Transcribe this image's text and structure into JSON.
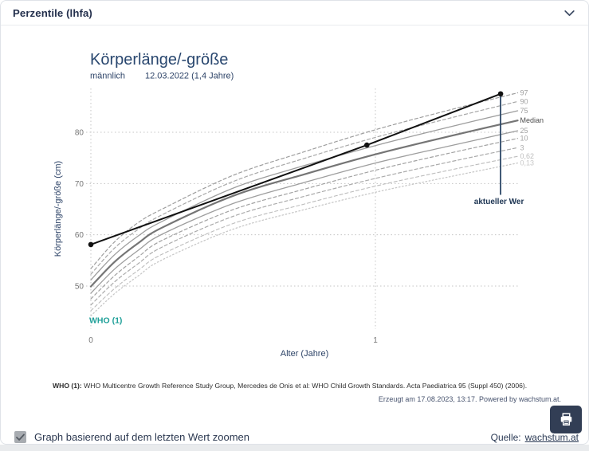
{
  "panel": {
    "title": "Perzentile (lhfa)"
  },
  "chart": {
    "title": "Körperlänge/-größe",
    "subtitle_sex": "männlich",
    "subtitle_date": "12.03.2022 (1,4 Jahre)",
    "y_axis_label": "Körperlänge/-größe (cm)",
    "x_axis_label": "Alter (Jahre)",
    "reference_label": "WHO (1)",
    "annotation_label": "aktueller Wer"
  },
  "chart_data": {
    "type": "line",
    "title": "Körperlänge/-größe",
    "subtitle": "männlich — 12.03.2022 (1,4 Jahre)",
    "xlabel": "Alter (Jahre)",
    "ylabel": "Körperlänge/-größe (cm)",
    "xlim": [
      0,
      1.5
    ],
    "ylim": [
      43.5,
      89
    ],
    "x_ticks": [
      0,
      1
    ],
    "y_ticks": [
      50,
      60,
      70,
      80
    ],
    "grid": "dotted",
    "legend_position": "right-edge-labels",
    "x": [
      0,
      0.083,
      0.167,
      0.25,
      0.5,
      0.75,
      1,
      1.25,
      1.5
    ],
    "series": [
      {
        "name": "97",
        "style": "dashed",
        "color": "#9e9e9e",
        "label_color": "#9e9e9e",
        "width": 1.2,
        "values": [
          53.4,
          58.6,
          62.4,
          65.0,
          71.6,
          76.2,
          80.5,
          84.2,
          87.7
        ]
      },
      {
        "name": "90",
        "style": "dashed",
        "color": "#a8a8a8",
        "label_color": "#a3a3a3",
        "width": 1.2,
        "values": [
          52.3,
          57.4,
          61.1,
          63.9,
          70.4,
          74.9,
          79.0,
          82.6,
          86.0
        ]
      },
      {
        "name": "75",
        "style": "solid",
        "color": "#9e9e9e",
        "label_color": "#9e9e9e",
        "width": 1.3,
        "values": [
          51.2,
          56.1,
          59.8,
          62.6,
          69.1,
          73.5,
          77.4,
          80.9,
          84.2
        ]
      },
      {
        "name": "Median",
        "style": "solid",
        "color": "#757575",
        "label_color": "#4d4d4d",
        "width": 2.2,
        "values": [
          49.9,
          54.7,
          58.4,
          61.4,
          67.6,
          71.8,
          75.7,
          79.1,
          82.3
        ]
      },
      {
        "name": "25",
        "style": "solid",
        "color": "#9e9e9e",
        "label_color": "#9e9e9e",
        "width": 1.3,
        "values": [
          48.6,
          53.3,
          57.0,
          60.1,
          66.1,
          70.2,
          74.0,
          77.2,
          80.3
        ]
      },
      {
        "name": "10",
        "style": "dashed",
        "color": "#a2a2a2",
        "label_color": "#a3a3a3",
        "width": 1.2,
        "values": [
          47.5,
          52.0,
          55.7,
          58.9,
          64.9,
          68.9,
          72.6,
          75.8,
          78.8
        ]
      },
      {
        "name": "3",
        "style": "dashed",
        "color": "#ababab",
        "label_color": "#ababab",
        "width": 1.2,
        "values": [
          46.3,
          50.8,
          54.4,
          57.6,
          63.6,
          67.5,
          71.0,
          74.1,
          77.0
        ]
      },
      {
        "name": "0,62",
        "style": "dashed",
        "color": "#bdbdbd",
        "label_color": "#bdbdbd",
        "width": 1.1,
        "values": [
          45.2,
          49.5,
          53.1,
          56.2,
          62.2,
          66.0,
          69.5,
          72.5,
          75.3
        ]
      },
      {
        "name": "0,13",
        "style": "dotted",
        "color": "#c8c8c8",
        "label_color": "#c8c8c8",
        "width": 1.3,
        "values": [
          44.2,
          48.5,
          52.0,
          55.1,
          61.1,
          64.9,
          68.3,
          71.2,
          74.0
        ]
      }
    ],
    "patient_series": {
      "name": "Messwerte",
      "color": "#111111",
      "points": [
        {
          "age": 0,
          "value": 58.1
        },
        {
          "age": 0.97,
          "value": 77.5
        },
        {
          "age": 1.44,
          "value": 87.5
        }
      ]
    },
    "annotation": {
      "label": "aktueller Wer",
      "age": 1.44,
      "value": 87.5
    }
  },
  "footnote": {
    "prefix": "WHO (1):",
    "text": " WHO Multicentre Growth Reference Study Group, Mercedes de Onis et al: WHO Child Growth Standards. Acta Paediatrica 95 (Suppl 450) (2006)."
  },
  "generated_note": "Erzeugt am 17.08.2023, 13:17. Powered by wachstum.at.",
  "footer": {
    "zoom_checkbox_label": "Graph basierend auf dem letzten Wert zoomen",
    "zoom_checkbox_checked": true,
    "source_label": "Quelle:",
    "source_link": "wachstum.at"
  },
  "colors": {
    "accent_navy": "#29476f",
    "annotation_navy": "#2c4766",
    "teal_reference": "#20a099",
    "print_button_bg": "#323e55",
    "grid": "#c4c4c4",
    "tick_text": "#757575"
  }
}
